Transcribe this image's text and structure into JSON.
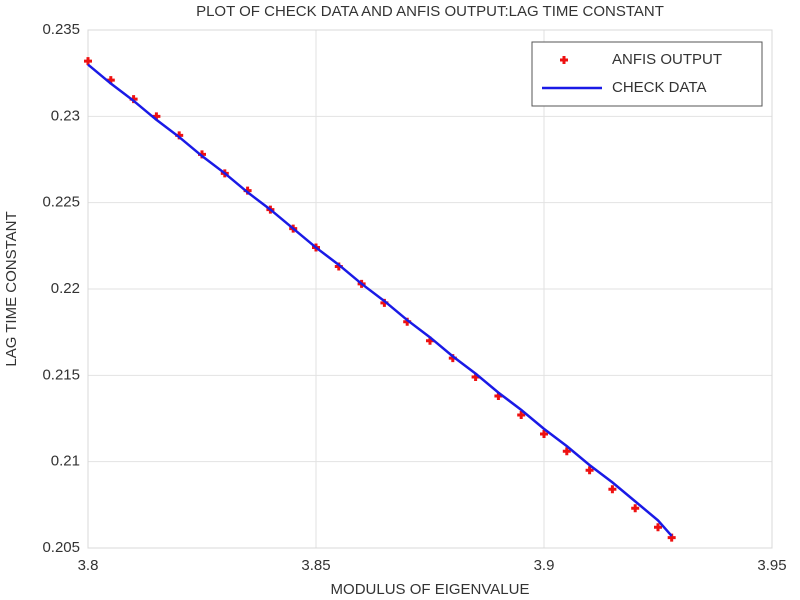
{
  "chart_data": {
    "type": "line",
    "title": "PLOT OF CHECK DATA AND ANFIS OUTPUT:LAG TIME CONSTANT",
    "x_label": "MODULUS OF EIGENVALUE",
    "y_label": "LAG TIME CONSTANT",
    "x": [
      3.8,
      3.805,
      3.81,
      3.815,
      3.82,
      3.825,
      3.83,
      3.835,
      3.84,
      3.845,
      3.85,
      3.855,
      3.86,
      3.865,
      3.87,
      3.875,
      3.88,
      3.885,
      3.89,
      3.895,
      3.9,
      3.905,
      3.91,
      3.915,
      3.92,
      3.925,
      3.928
    ],
    "series": [
      {
        "name": "ANFIS OUTPUT",
        "style": "markers",
        "color": "#ee1111",
        "values": [
          0.2332,
          0.2321,
          0.231,
          0.23,
          0.2289,
          0.2278,
          0.2267,
          0.2257,
          0.2246,
          0.2235,
          0.2224,
          0.2213,
          0.2203,
          0.2192,
          0.2181,
          0.217,
          0.216,
          0.2149,
          0.2138,
          0.2127,
          0.2116,
          0.2106,
          0.2095,
          0.2084,
          0.2073,
          0.2062,
          0.2056
        ]
      },
      {
        "name": "CHECK DATA",
        "style": "line",
        "color": "#1a1ae6",
        "values": [
          0.233,
          0.2319,
          0.2309,
          0.2298,
          0.2288,
          0.2277,
          0.2267,
          0.2256,
          0.2246,
          0.2235,
          0.2224,
          0.2214,
          0.2203,
          0.2193,
          0.2182,
          0.2172,
          0.2161,
          0.2151,
          0.214,
          0.213,
          0.2119,
          0.2109,
          0.2098,
          0.2088,
          0.2077,
          0.2066,
          0.2057
        ]
      }
    ],
    "xlim": [
      3.8,
      3.95
    ],
    "xticks": [
      3.8,
      3.85,
      3.9,
      3.95
    ],
    "ylim": [
      0.205,
      0.235
    ],
    "yticks": [
      0.205,
      0.21,
      0.215,
      0.22,
      0.225,
      0.23,
      0.235
    ],
    "grid": true,
    "legend": "upper-right"
  }
}
